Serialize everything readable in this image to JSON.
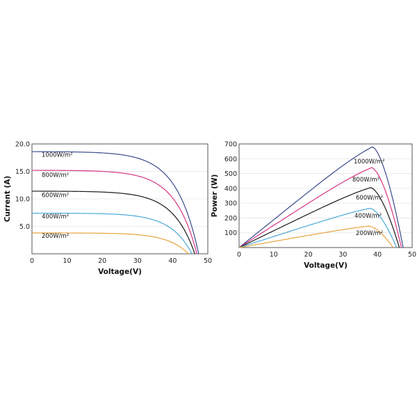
{
  "chart_data": [
    {
      "type": "line",
      "xlabel": "Voltage(V)",
      "ylabel": "Current (A)",
      "xlim": [
        0,
        50
      ],
      "ylim": [
        0,
        20
      ],
      "xticks": [
        "0",
        "10",
        "20",
        "30",
        "40",
        "50"
      ],
      "yticks": [
        "5.0",
        "10.0",
        "15.0",
        "20.0"
      ],
      "ytick_values": [
        5,
        10,
        15,
        20
      ],
      "grid": true,
      "series": [
        {
          "name": "1000W/m²",
          "color": "#3b4a8c",
          "isc": 18.6,
          "voc": 47.4,
          "knee_v": 38.5,
          "points": [
            [
              0,
              18.6
            ],
            [
              30,
              18.6
            ],
            [
              38,
              18.2
            ],
            [
              42,
              16.8
            ],
            [
              45,
              12.0
            ],
            [
              47.4,
              0
            ]
          ]
        },
        {
          "name": "800W/m²",
          "color": "#d63384",
          "isc": 15.2,
          "voc": 46.9,
          "knee_v": 38.0,
          "points": [
            [
              0,
              15.2
            ],
            [
              30,
              15.2
            ],
            [
              38,
              14.8
            ],
            [
              42,
              13.4
            ],
            [
              45,
              8.5
            ],
            [
              46.9,
              0
            ]
          ]
        },
        {
          "name": "600W/m²",
          "color": "#1a1a1a",
          "isc": 11.4,
          "voc": 46.3,
          "knee_v": 37.5,
          "points": [
            [
              0,
              11.4
            ],
            [
              30,
              11.4
            ],
            [
              37,
              11.1
            ],
            [
              41,
              10.0
            ],
            [
              44,
              6.0
            ],
            [
              46.3,
              0
            ]
          ]
        },
        {
          "name": "400W/m²",
          "color": "#4aa8d8",
          "isc": 7.4,
          "voc": 45.5,
          "knee_v": 37.0,
          "points": [
            [
              0,
              7.4
            ],
            [
              30,
              7.4
            ],
            [
              37,
              7.2
            ],
            [
              40,
              6.5
            ],
            [
              43,
              4.0
            ],
            [
              45.5,
              0
            ]
          ]
        },
        {
          "name": "200W/m²",
          "color": "#e8a33c",
          "isc": 3.8,
          "voc": 44.5,
          "knee_v": 35.5,
          "points": [
            [
              0,
              3.8
            ],
            [
              30,
              3.8
            ],
            [
              36,
              3.7
            ],
            [
              39,
              3.3
            ],
            [
              42,
              2.0
            ],
            [
              44.5,
              0
            ]
          ]
        }
      ]
    },
    {
      "type": "line",
      "xlabel": "Voltage(V)",
      "ylabel": "Power (W)",
      "xlim": [
        0,
        50
      ],
      "ylim": [
        0,
        700
      ],
      "xticks": [
        "0",
        "10",
        "20",
        "30",
        "40",
        "50"
      ],
      "yticks": [
        "100",
        "200",
        "300",
        "400",
        "500",
        "600",
        "700"
      ],
      "ytick_values": [
        100,
        200,
        300,
        400,
        500,
        600,
        700
      ],
      "grid": true,
      "series": [
        {
          "name": "1000W/m²",
          "color": "#3b4a8c",
          "pmax": 680,
          "vmp": 38.5,
          "voc": 47.4
        },
        {
          "name": "800W/m²",
          "color": "#d63384",
          "pmax": 540,
          "vmp": 38.3,
          "voc": 46.9
        },
        {
          "name": "600W/m²",
          "color": "#1a1a1a",
          "pmax": 405,
          "vmp": 38.0,
          "voc": 46.3
        },
        {
          "name": "400W/m²",
          "color": "#4aa8d8",
          "pmax": 265,
          "vmp": 37.8,
          "voc": 45.5
        },
        {
          "name": "200W/m²",
          "color": "#e8a33c",
          "pmax": 145,
          "vmp": 37.5,
          "voc": 44.5
        }
      ]
    }
  ]
}
